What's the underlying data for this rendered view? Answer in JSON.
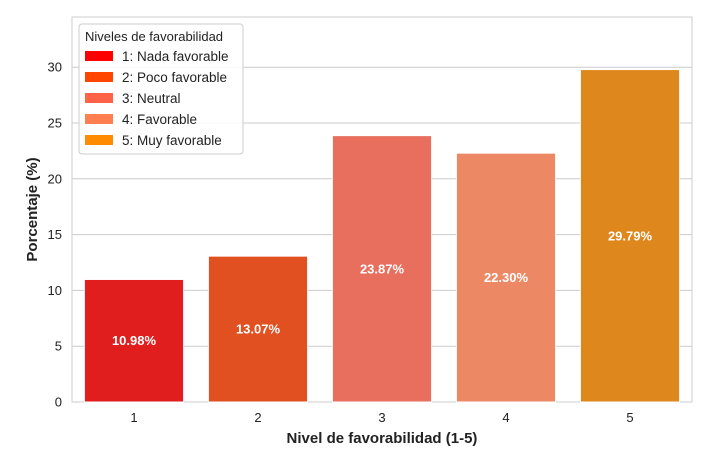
{
  "chart_data": {
    "type": "bar",
    "categories": [
      "1",
      "2",
      "3",
      "4",
      "5"
    ],
    "values": [
      10.98,
      13.07,
      23.87,
      22.3,
      29.79
    ],
    "bar_labels": [
      "10.98%",
      "13.07%",
      "23.87%",
      "22.30%",
      "29.79%"
    ],
    "colors": [
      "#e01e1e",
      "#e05020",
      "#e86e5e",
      "#ec8964",
      "#de871c"
    ],
    "xlabel": "Nivel de favorabilidad (1-5)",
    "ylabel": "Porcentaje (%)",
    "ylim": [
      0,
      34.5
    ],
    "yticks": [
      0,
      5,
      10,
      15,
      20,
      25,
      30
    ],
    "grid": true,
    "legend": {
      "title": "Niveles de favorabilidad",
      "placement": "top-left",
      "entries": [
        {
          "label": "1: Nada favorable",
          "color": "#ff0000"
        },
        {
          "label": "2: Poco favorable",
          "color": "#ff4500"
        },
        {
          "label": "3: Neutral",
          "color": "#ff6347"
        },
        {
          "label": "4: Favorable",
          "color": "#ff7f50"
        },
        {
          "label": "5: Muy favorable",
          "color": "#ff8c00"
        }
      ]
    }
  }
}
